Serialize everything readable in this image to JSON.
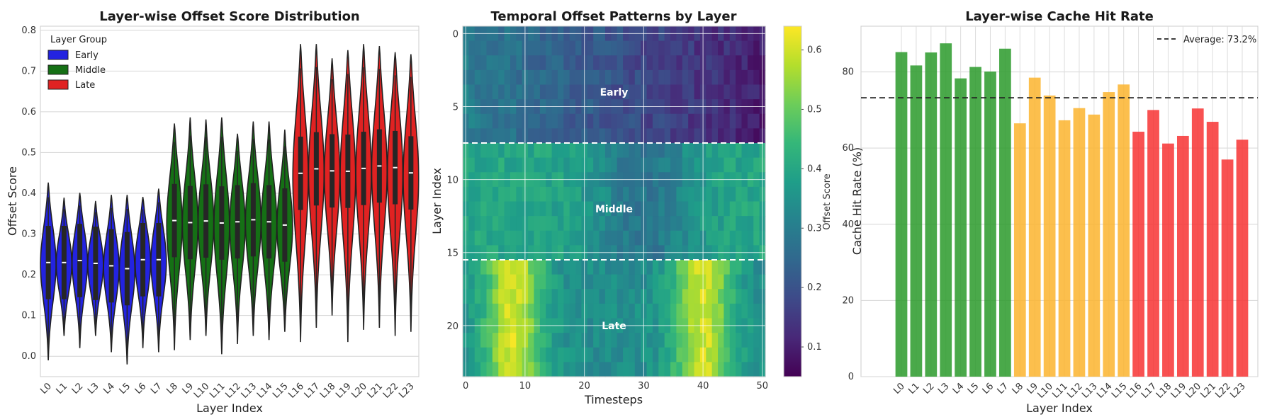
{
  "chart_data": [
    {
      "type": "violin",
      "title": "Layer-wise Offset Score Distribution",
      "xlabel": "Layer Index",
      "ylabel": "Offset Score",
      "ylim": [
        -0.05,
        0.81
      ],
      "yticks": [
        0.0,
        0.1,
        0.2,
        0.3,
        0.4,
        0.5,
        0.6,
        0.7,
        0.8
      ],
      "categories": [
        "L0",
        "L1",
        "L2",
        "L3",
        "L4",
        "L5",
        "L6",
        "L7",
        "L8",
        "L9",
        "L10",
        "L11",
        "L12",
        "L13",
        "L14",
        "L15",
        "L16",
        "L17",
        "L18",
        "L19",
        "L20",
        "L21",
        "L22",
        "L23"
      ],
      "groups": [
        "Early",
        "Early",
        "Early",
        "Early",
        "Early",
        "Early",
        "Early",
        "Early",
        "Middle",
        "Middle",
        "Middle",
        "Middle",
        "Middle",
        "Middle",
        "Middle",
        "Middle",
        "Late",
        "Late",
        "Late",
        "Late",
        "Late",
        "Late",
        "Late",
        "Late"
      ],
      "medians": [
        0.23,
        0.23,
        0.235,
        0.228,
        0.222,
        0.215,
        0.237,
        0.237,
        0.333,
        0.328,
        0.332,
        0.327,
        0.33,
        0.335,
        0.33,
        0.322,
        0.449,
        0.46,
        0.455,
        0.454,
        0.461,
        0.467,
        0.463,
        0.45
      ],
      "mins": [
        -0.01,
        0.05,
        0.02,
        0.05,
        0.01,
        -0.02,
        0.02,
        0.01,
        0.015,
        0.04,
        0.05,
        0.005,
        0.03,
        0.05,
        0.04,
        0.06,
        0.035,
        0.07,
        0.1,
        0.035,
        0.065,
        0.07,
        0.05,
        0.06
      ],
      "maxs": [
        0.425,
        0.388,
        0.4,
        0.38,
        0.395,
        0.395,
        0.39,
        0.41,
        0.57,
        0.585,
        0.58,
        0.585,
        0.545,
        0.575,
        0.575,
        0.555,
        0.765,
        0.765,
        0.73,
        0.75,
        0.765,
        0.76,
        0.745,
        0.74
      ],
      "legend": {
        "title": "Layer Group",
        "position": "upper-left",
        "entries": [
          {
            "label": "Early",
            "color": "#2323e0"
          },
          {
            "label": "Middle",
            "color": "#157015"
          },
          {
            "label": "Late",
            "color": "#e02222"
          }
        ]
      },
      "grid": true
    },
    {
      "type": "heatmap",
      "title": "Temporal Offset Patterns by Layer",
      "xlabel": "Timesteps",
      "ylabel": "Layer Index",
      "x_range": [
        0,
        50
      ],
      "y_range": [
        0,
        23
      ],
      "xticks": [
        0,
        10,
        20,
        30,
        40,
        50
      ],
      "yticks": [
        0,
        5,
        10,
        15,
        20
      ],
      "colorbar": {
        "label": "Offset Score",
        "range": [
          0.05,
          0.64
        ],
        "ticks": [
          0.1,
          0.2,
          0.3,
          0.4,
          0.5,
          0.6
        ],
        "colormap": "viridis"
      },
      "group_boundaries": [
        7.5,
        15.5
      ],
      "annotations": [
        {
          "text": "Early",
          "x": 25,
          "y": 4
        },
        {
          "text": "Middle",
          "x": 25,
          "y": 12
        },
        {
          "text": "Late",
          "x": 25,
          "y": 20
        }
      ],
      "profiles": {
        "early": "value decreases roughly linearly from ~0.30 at t=0 to ~0.10 at t=50",
        "middle": "value around 0.40 near edges, dipping to ~0.28 around t=30",
        "late": "two peaks near t=8 and t=40 (~0.60), minimum ~0.34 near t=24"
      }
    },
    {
      "type": "bar",
      "title": "Layer-wise Cache Hit Rate",
      "xlabel": "Layer Index",
      "ylabel": "Cache Hit Rate (%)",
      "ylim": [
        0,
        92
      ],
      "yticks": [
        0,
        20,
        40,
        60,
        80
      ],
      "categories": [
        "L0",
        "L1",
        "L2",
        "L3",
        "L4",
        "L5",
        "L6",
        "L7",
        "L8",
        "L9",
        "L10",
        "L11",
        "L12",
        "L13",
        "L14",
        "L15",
        "L16",
        "L17",
        "L18",
        "L19",
        "L20",
        "L21",
        "L22",
        "L23"
      ],
      "values": [
        85.2,
        81.7,
        85.1,
        87.5,
        78.3,
        81.3,
        80.1,
        86.1,
        66.5,
        78.5,
        73.8,
        67.3,
        70.5,
        68.8,
        74.7,
        76.7,
        64.3,
        70,
        61.2,
        63.2,
        70.4,
        66.9,
        57,
        62.2
      ],
      "colors": [
        "#2a9a2a",
        "#2a9a2a",
        "#2a9a2a",
        "#2a9a2a",
        "#2a9a2a",
        "#2a9a2a",
        "#2a9a2a",
        "#2a9a2a",
        "#fcb42e",
        "#fcb42e",
        "#fcb42e",
        "#fcb42e",
        "#fcb42e",
        "#fcb42e",
        "#fcb42e",
        "#fcb42e",
        "#f73232",
        "#f73232",
        "#f73232",
        "#f73232",
        "#f73232",
        "#f73232",
        "#f73232",
        "#f73232"
      ],
      "average_line": {
        "value": 73.2,
        "label": "Average: 73.2%"
      },
      "legend": {
        "position": "upper-right"
      },
      "grid": true
    }
  ]
}
